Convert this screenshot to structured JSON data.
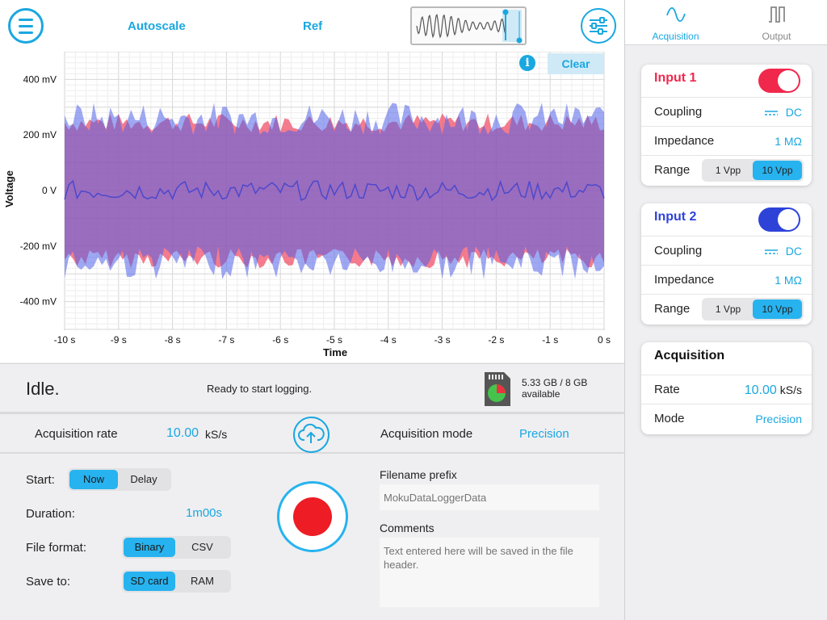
{
  "toolbar": {
    "autoscale": "Autoscale",
    "ref": "Ref",
    "menu_icon": "hamburger-menu-icon",
    "settings_icon": "sliders-icon"
  },
  "chart": {
    "clear_label": "Clear",
    "info_icon": "i"
  },
  "chart_data": {
    "type": "area",
    "xlabel": "Time",
    "ylabel": "Voltage",
    "x_ticks": [
      "-10 s",
      "-9 s",
      "-8 s",
      "-7 s",
      "-6 s",
      "-5 s",
      "-4 s",
      "-3 s",
      "-2 s",
      "-1 s",
      "0 s"
    ],
    "y_ticks": [
      "400 mV",
      "200 mV",
      "0 V",
      "-200 mV",
      "-400 mV"
    ],
    "xlim": [
      -10,
      0
    ],
    "ylim": [
      -500,
      500
    ],
    "grid": true,
    "series": [
      {
        "color": "#f05068",
        "envelope_amplitude_mV": [
          210,
          280
        ]
      },
      {
        "color": "#5060e8",
        "envelope_amplitude_mV": [
          200,
          320
        ]
      }
    ]
  },
  "status": {
    "state": "Idle.",
    "message": "Ready to start logging.",
    "storage_line1": "5.33 GB / 8 GB",
    "storage_line2": "available"
  },
  "acquisition_row": {
    "rate_label": "Acquisition rate",
    "rate_value": "10.00",
    "rate_unit": "kS/s",
    "mode_label": "Acquisition mode",
    "mode_value": "Precision"
  },
  "config": {
    "start_label": "Start:",
    "start_options": [
      "Now",
      "Delay"
    ],
    "duration_label": "Duration:",
    "duration_value": "1m00s",
    "format_label": "File format:",
    "format_options": [
      "Binary",
      "CSV"
    ],
    "save_label": "Save to:",
    "save_options": [
      "SD card",
      "RAM"
    ],
    "filename_label": "Filename prefix",
    "filename_placeholder": "MokuDataLoggerData",
    "comments_label": "Comments",
    "comments_placeholder": "Text entered here will be saved in the file header."
  },
  "tabs": {
    "acquisition": "Acquisition",
    "output": "Output"
  },
  "input1": {
    "title": "Input 1",
    "color": "#f0284c",
    "coupling_label": "Coupling",
    "coupling_value": "DC",
    "impedance_label": "Impedance",
    "impedance_value": "1 MΩ",
    "range_label": "Range",
    "range_options": [
      "1 Vpp",
      "10 Vpp"
    ]
  },
  "input2": {
    "title": "Input 2",
    "color": "#2d43d8",
    "coupling_label": "Coupling",
    "coupling_value": "DC",
    "impedance_label": "Impedance",
    "impedance_value": "1 MΩ",
    "range_label": "Range",
    "range_options": [
      "1 Vpp",
      "10 Vpp"
    ]
  },
  "acquisition_card": {
    "title": "Acquisition",
    "rate_label": "Rate",
    "rate_value": "10.00",
    "rate_unit": "kS/s",
    "mode_label": "Mode",
    "mode_value": "Precision"
  }
}
